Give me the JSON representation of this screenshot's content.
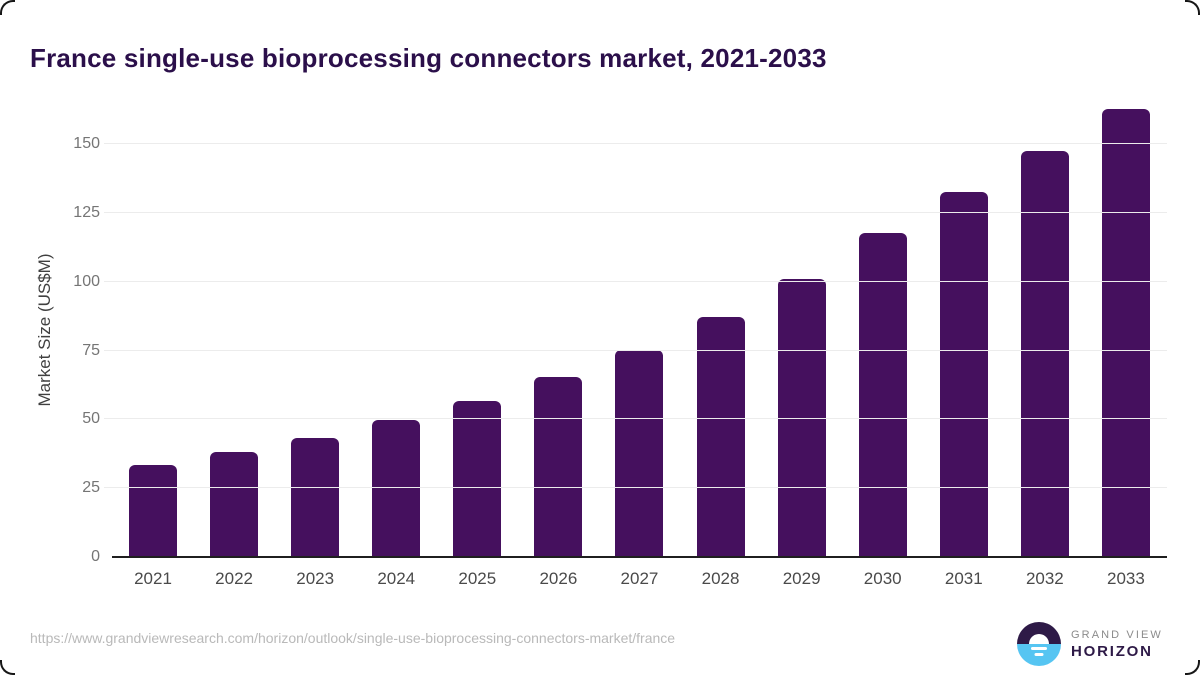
{
  "page": {
    "title": "France single-use bioprocessing connectors market, 2021-2033"
  },
  "chart_data": {
    "type": "bar",
    "title": "France single-use bioprocessing connectors market, 2021-2033",
    "categories": [
      "2021",
      "2022",
      "2023",
      "2024",
      "2025",
      "2026",
      "2027",
      "2028",
      "2029",
      "2030",
      "2031",
      "2032",
      "2033"
    ],
    "values": [
      33.3,
      38.0,
      43.4,
      49.7,
      56.7,
      65.5,
      75.3,
      87.3,
      101.1,
      117.8,
      132.5,
      147.5,
      162.8
    ],
    "xlabel": "",
    "ylabel": "Market Size (US$M)",
    "ylim": [
      0,
      165
    ],
    "yticks": [
      0,
      25,
      50,
      75,
      100,
      125,
      150
    ],
    "legend": "none",
    "grid": "horizontal",
    "bar_color": "#45105e"
  },
  "footer": {
    "source_url": "https://www.grandviewresearch.com/horizon/outlook/single-use-bioprocessing-connectors-market/france",
    "logo": {
      "top": "GRAND VIEW",
      "bottom": "HORIZON"
    }
  },
  "colors": {
    "title": "#2b0f4a",
    "bar": "#45105e",
    "axis_line": "#1f1f1f",
    "gridline": "#ececec",
    "y_tick_label": "#757575",
    "x_tick_label": "#4a4a4a",
    "source_url": "#b9b9b9",
    "logo_blue": "#56c5f2",
    "logo_purple": "#2e1a47"
  }
}
